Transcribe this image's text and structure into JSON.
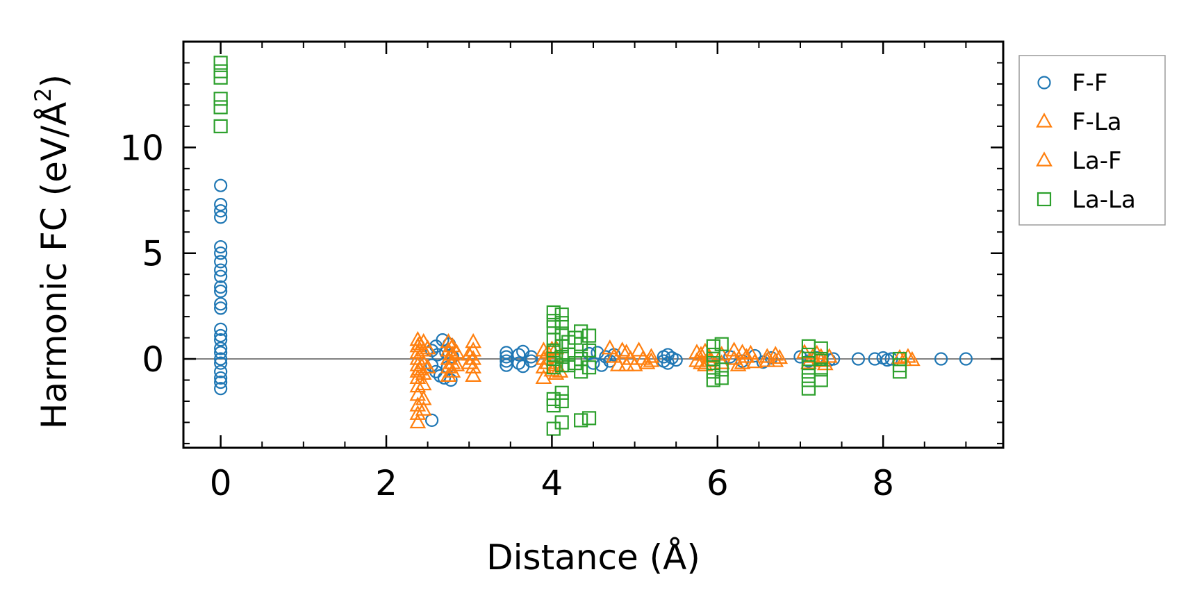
{
  "chart_data": {
    "type": "scatter",
    "title": "",
    "xlabel": "Distance (Å)",
    "ylabel_main": "Harmonic FC (eV/Å",
    "ylabel_sup": "2",
    "ylabel_tail": ")",
    "xlim": [
      -0.45,
      9.45
    ],
    "ylim": [
      -4.2,
      15.0
    ],
    "xticks": [
      0,
      2,
      4,
      6,
      8
    ],
    "xtick_labels": [
      "0",
      "2",
      "4",
      "6",
      "8"
    ],
    "yticks": [
      0,
      5,
      10
    ],
    "ytick_labels": [
      "0",
      "5",
      "10"
    ],
    "reference_line_y": 0,
    "legend_position": "outside-right-top",
    "colors": {
      "blue": "#1f77b4",
      "orange": "#ff7f0e",
      "green": "#2ca02c",
      "refline": "#808080"
    },
    "series": [
      {
        "name": "F-F",
        "marker": "circle",
        "color": "#1f77b4",
        "points": [
          [
            0,
            8.2
          ],
          [
            0,
            7.3
          ],
          [
            0,
            7.0
          ],
          [
            0,
            6.7
          ],
          [
            0,
            5.3
          ],
          [
            0,
            5.0
          ],
          [
            0,
            4.6
          ],
          [
            0,
            4.2
          ],
          [
            0,
            3.9
          ],
          [
            0,
            3.4
          ],
          [
            0,
            3.2
          ],
          [
            0,
            2.6
          ],
          [
            0,
            2.4
          ],
          [
            0,
            1.4
          ],
          [
            0,
            1.1
          ],
          [
            0,
            0.9
          ],
          [
            0,
            0.5
          ],
          [
            0,
            0.3
          ],
          [
            0,
            0.0
          ],
          [
            0,
            -0.2
          ],
          [
            0,
            -0.6
          ],
          [
            0,
            -0.9
          ],
          [
            0,
            -1.1
          ],
          [
            0,
            -1.4
          ],
          [
            2.55,
            -2.9
          ],
          [
            2.55,
            0.4
          ],
          [
            2.55,
            -0.3
          ],
          [
            2.6,
            0.6
          ],
          [
            2.6,
            -0.6
          ],
          [
            2.62,
            0.2
          ],
          [
            2.65,
            -0.8
          ],
          [
            2.68,
            0.9
          ],
          [
            2.7,
            -0.9
          ],
          [
            2.72,
            0.3
          ],
          [
            2.74,
            -0.4
          ],
          [
            2.76,
            0.7
          ],
          [
            2.78,
            -1.0
          ],
          [
            2.8,
            0.1
          ],
          [
            3.45,
            0.3
          ],
          [
            3.45,
            0.1
          ],
          [
            3.45,
            -0.1
          ],
          [
            3.45,
            -0.3
          ],
          [
            3.6,
            0.2
          ],
          [
            3.6,
            -0.2
          ],
          [
            3.65,
            0.35
          ],
          [
            3.65,
            -0.35
          ],
          [
            3.75,
            0.1
          ],
          [
            3.75,
            -0.1
          ],
          [
            4.45,
            0.25
          ],
          [
            4.5,
            -0.2
          ],
          [
            4.55,
            0.3
          ],
          [
            4.6,
            -0.3
          ],
          [
            4.65,
            0.1
          ],
          [
            4.7,
            -0.1
          ],
          [
            4.75,
            0.2
          ],
          [
            5.35,
            0.1
          ],
          [
            5.35,
            -0.1
          ],
          [
            5.4,
            0.2
          ],
          [
            5.4,
            -0.2
          ],
          [
            5.45,
            0.05
          ],
          [
            5.5,
            -0.05
          ],
          [
            6.15,
            0.1
          ],
          [
            6.3,
            -0.1
          ],
          [
            6.45,
            0.15
          ],
          [
            6.55,
            -0.15
          ],
          [
            6.65,
            0.05
          ],
          [
            7.0,
            0.1
          ],
          [
            7.1,
            -0.1
          ],
          [
            7.2,
            0.05
          ],
          [
            7.35,
            -0.05
          ],
          [
            7.4,
            0.0
          ],
          [
            7.7,
            0.0
          ],
          [
            7.9,
            0.0
          ],
          [
            8.0,
            0.05
          ],
          [
            8.05,
            -0.05
          ],
          [
            8.1,
            0.0
          ],
          [
            8.7,
            0.0
          ],
          [
            9.0,
            0.0
          ]
        ]
      },
      {
        "name": "F-La",
        "marker": "triangle",
        "color": "#ff7f0e",
        "points": [
          [
            2.38,
            0.9
          ],
          [
            2.38,
            0.6
          ],
          [
            2.38,
            0.3
          ],
          [
            2.38,
            0.0
          ],
          [
            2.38,
            -0.3
          ],
          [
            2.38,
            -0.6
          ],
          [
            2.38,
            -0.9
          ],
          [
            2.38,
            -1.3
          ],
          [
            2.38,
            -1.7
          ],
          [
            2.38,
            -2.2
          ],
          [
            2.38,
            -2.6
          ],
          [
            2.38,
            -3.0
          ],
          [
            2.45,
            0.8
          ],
          [
            2.45,
            0.4
          ],
          [
            2.45,
            -0.2
          ],
          [
            2.45,
            -0.7
          ],
          [
            2.45,
            -1.2
          ],
          [
            2.45,
            -1.9
          ],
          [
            2.45,
            -2.4
          ],
          [
            2.75,
            0.8
          ],
          [
            2.75,
            0.4
          ],
          [
            2.75,
            0.0
          ],
          [
            2.75,
            -0.4
          ],
          [
            2.75,
            -0.8
          ],
          [
            2.8,
            0.6
          ],
          [
            2.8,
            0.2
          ],
          [
            2.8,
            -0.2
          ],
          [
            2.8,
            -0.6
          ],
          [
            3.05,
            0.8
          ],
          [
            3.05,
            0.4
          ],
          [
            3.05,
            0.0
          ],
          [
            3.05,
            -0.4
          ],
          [
            3.05,
            -0.8
          ],
          [
            3.9,
            0.4
          ],
          [
            3.9,
            0.0
          ],
          [
            3.9,
            -0.4
          ],
          [
            3.9,
            -0.9
          ],
          [
            4.05,
            0.5
          ],
          [
            4.05,
            0.1
          ],
          [
            4.05,
            -0.3
          ],
          [
            4.05,
            -0.7
          ],
          [
            4.7,
            0.5
          ],
          [
            4.75,
            0.1
          ],
          [
            4.8,
            -0.3
          ],
          [
            4.85,
            0.4
          ],
          [
            4.95,
            0.0
          ],
          [
            5.0,
            -0.3
          ],
          [
            5.05,
            0.4
          ],
          [
            5.1,
            0.0
          ],
          [
            5.15,
            -0.2
          ],
          [
            5.75,
            0.3
          ],
          [
            5.75,
            -0.1
          ],
          [
            5.8,
            0.2
          ],
          [
            5.8,
            -0.2
          ],
          [
            5.85,
            0.35
          ],
          [
            5.85,
            -0.3
          ],
          [
            6.2,
            0.4
          ],
          [
            6.2,
            0.0
          ],
          [
            6.25,
            -0.3
          ],
          [
            6.3,
            0.3
          ],
          [
            6.3,
            -0.2
          ],
          [
            6.35,
            0.1
          ],
          [
            6.4,
            0.25
          ],
          [
            6.45,
            -0.15
          ],
          [
            6.7,
            0.2
          ],
          [
            6.7,
            -0.1
          ],
          [
            6.75,
            0.05
          ],
          [
            7.05,
            0.3
          ],
          [
            7.1,
            -0.2
          ],
          [
            7.15,
            0.1
          ],
          [
            7.2,
            0.25
          ],
          [
            7.3,
            -0.25
          ],
          [
            7.35,
            0.1
          ],
          [
            8.3,
            0.1
          ],
          [
            8.35,
            -0.05
          ]
        ]
      },
      {
        "name": "La-F",
        "marker": "triangle",
        "color": "#ff7f0e",
        "points": [
          [
            2.4,
            0.7
          ],
          [
            2.4,
            -0.5
          ],
          [
            2.5,
            0.5
          ],
          [
            2.5,
            -0.4
          ],
          [
            2.85,
            0.3
          ],
          [
            2.85,
            -0.3
          ],
          [
            3.0,
            0.2
          ],
          [
            3.0,
            -0.2
          ],
          [
            3.95,
            0.3
          ],
          [
            3.95,
            -0.2
          ],
          [
            4.0,
            0.45
          ],
          [
            4.0,
            -0.55
          ],
          [
            4.1,
            -0.6
          ],
          [
            4.9,
            0.3
          ],
          [
            4.9,
            -0.3
          ],
          [
            5.2,
            0.1
          ],
          [
            5.2,
            -0.1
          ],
          [
            5.9,
            0.1
          ],
          [
            5.9,
            -0.1
          ],
          [
            6.05,
            0.2
          ],
          [
            6.05,
            -0.2
          ],
          [
            6.6,
            0.1
          ],
          [
            6.6,
            -0.1
          ],
          [
            7.25,
            0.1
          ],
          [
            7.25,
            -0.1
          ],
          [
            8.2,
            0.05
          ],
          [
            8.25,
            -0.05
          ]
        ]
      },
      {
        "name": "La-La",
        "marker": "square",
        "color": "#2ca02c",
        "points": [
          [
            0,
            14.0
          ],
          [
            0,
            13.6
          ],
          [
            0,
            13.3
          ],
          [
            0,
            12.3
          ],
          [
            0,
            11.9
          ],
          [
            0,
            11.0
          ],
          [
            4.02,
            2.2
          ],
          [
            4.02,
            1.8
          ],
          [
            4.02,
            1.5
          ],
          [
            4.02,
            0.9
          ],
          [
            4.02,
            0.4
          ],
          [
            4.02,
            0.0
          ],
          [
            4.02,
            -0.4
          ],
          [
            4.02,
            -1.9
          ],
          [
            4.02,
            -2.2
          ],
          [
            4.02,
            -3.3
          ],
          [
            4.12,
            2.1
          ],
          [
            4.12,
            1.7
          ],
          [
            4.12,
            1.2
          ],
          [
            4.12,
            0.6
          ],
          [
            4.12,
            0.1
          ],
          [
            4.12,
            -0.3
          ],
          [
            4.12,
            -1.6
          ],
          [
            4.12,
            -2.0
          ],
          [
            4.12,
            -3.0
          ],
          [
            4.2,
            0.8
          ],
          [
            4.2,
            0.2
          ],
          [
            4.2,
            -0.3
          ],
          [
            4.28,
            1.0
          ],
          [
            4.28,
            -0.2
          ],
          [
            4.35,
            1.3
          ],
          [
            4.35,
            0.7
          ],
          [
            4.35,
            0.0
          ],
          [
            4.35,
            -0.6
          ],
          [
            4.35,
            -2.9
          ],
          [
            4.45,
            1.1
          ],
          [
            4.45,
            0.4
          ],
          [
            4.45,
            -0.4
          ],
          [
            4.45,
            -2.8
          ],
          [
            5.95,
            0.6
          ],
          [
            5.95,
            0.2
          ],
          [
            5.95,
            -0.2
          ],
          [
            5.95,
            -0.6
          ],
          [
            5.95,
            -1.0
          ],
          [
            6.05,
            0.7
          ],
          [
            6.05,
            -0.5
          ],
          [
            6.05,
            -0.9
          ],
          [
            7.1,
            0.6
          ],
          [
            7.1,
            0.2
          ],
          [
            7.1,
            -0.2
          ],
          [
            7.1,
            -0.6
          ],
          [
            7.1,
            -1.0
          ],
          [
            7.1,
            -1.4
          ],
          [
            7.25,
            0.5
          ],
          [
            7.25,
            0.0
          ],
          [
            7.25,
            -0.5
          ],
          [
            7.25,
            -1.0
          ],
          [
            8.2,
            0.0
          ],
          [
            8.2,
            -0.3
          ],
          [
            8.2,
            -0.6
          ]
        ]
      }
    ]
  }
}
